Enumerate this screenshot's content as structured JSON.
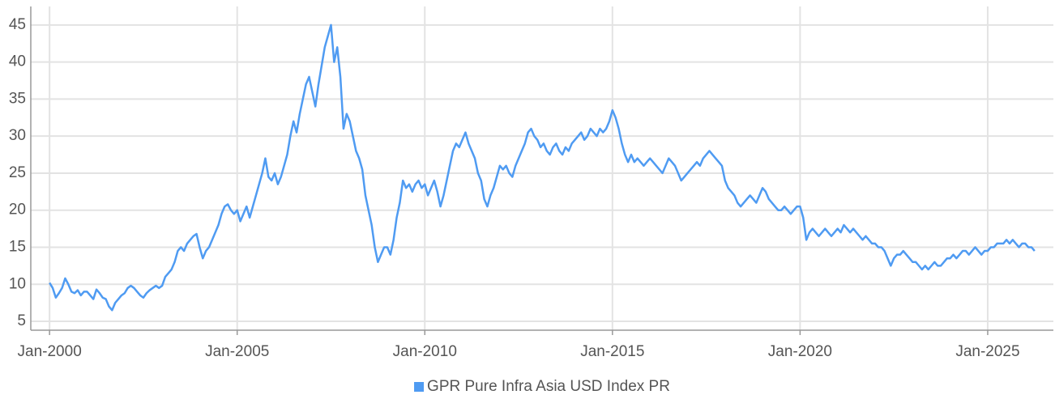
{
  "chart_data": {
    "type": "line",
    "x": [
      "2000-01",
      "2000-02",
      "2000-03",
      "2000-04",
      "2000-05",
      "2000-06",
      "2000-07",
      "2000-08",
      "2000-09",
      "2000-10",
      "2000-11",
      "2000-12",
      "2001-01",
      "2001-02",
      "2001-03",
      "2001-04",
      "2001-05",
      "2001-06",
      "2001-07",
      "2001-08",
      "2001-09",
      "2001-10",
      "2001-11",
      "2001-12",
      "2002-01",
      "2002-02",
      "2002-03",
      "2002-04",
      "2002-05",
      "2002-06",
      "2002-07",
      "2002-08",
      "2002-09",
      "2002-10",
      "2002-11",
      "2002-12",
      "2003-01",
      "2003-02",
      "2003-03",
      "2003-04",
      "2003-05",
      "2003-06",
      "2003-07",
      "2003-08",
      "2003-09",
      "2003-10",
      "2003-11",
      "2003-12",
      "2004-01",
      "2004-02",
      "2004-03",
      "2004-04",
      "2004-05",
      "2004-06",
      "2004-07",
      "2004-08",
      "2004-09",
      "2004-10",
      "2004-11",
      "2004-12",
      "2005-01",
      "2005-02",
      "2005-03",
      "2005-04",
      "2005-05",
      "2005-06",
      "2005-07",
      "2005-08",
      "2005-09",
      "2005-10",
      "2005-11",
      "2005-12",
      "2006-01",
      "2006-02",
      "2006-03",
      "2006-04",
      "2006-05",
      "2006-06",
      "2006-07",
      "2006-08",
      "2006-09",
      "2006-10",
      "2006-11",
      "2006-12",
      "2007-01",
      "2007-02",
      "2007-03",
      "2007-04",
      "2007-05",
      "2007-06",
      "2007-07",
      "2007-08",
      "2007-09",
      "2007-10",
      "2007-11",
      "2007-12",
      "2008-01",
      "2008-02",
      "2008-03",
      "2008-04",
      "2008-05",
      "2008-06",
      "2008-07",
      "2008-08",
      "2008-09",
      "2008-10",
      "2008-11",
      "2008-12",
      "2009-01",
      "2009-02",
      "2009-03",
      "2009-04",
      "2009-05",
      "2009-06",
      "2009-07",
      "2009-08",
      "2009-09",
      "2009-10",
      "2009-11",
      "2009-12",
      "2010-01",
      "2010-02",
      "2010-03",
      "2010-04",
      "2010-05",
      "2010-06",
      "2010-07",
      "2010-08",
      "2010-09",
      "2010-10",
      "2010-11",
      "2010-12",
      "2011-01",
      "2011-02",
      "2011-03",
      "2011-04",
      "2011-05",
      "2011-06",
      "2011-07",
      "2011-08",
      "2011-09",
      "2011-10",
      "2011-11",
      "2011-12",
      "2012-01",
      "2012-02",
      "2012-03",
      "2012-04",
      "2012-05",
      "2012-06",
      "2012-07",
      "2012-08",
      "2012-09",
      "2012-10",
      "2012-11",
      "2012-12",
      "2013-01",
      "2013-02",
      "2013-03",
      "2013-04",
      "2013-05",
      "2013-06",
      "2013-07",
      "2013-08",
      "2013-09",
      "2013-10",
      "2013-11",
      "2013-12",
      "2014-01",
      "2014-02",
      "2014-03",
      "2014-04",
      "2014-05",
      "2014-06",
      "2014-07",
      "2014-08",
      "2014-09",
      "2014-10",
      "2014-11",
      "2014-12",
      "2015-01",
      "2015-02",
      "2015-03",
      "2015-04",
      "2015-05",
      "2015-06",
      "2015-07",
      "2015-08",
      "2015-09",
      "2015-10",
      "2015-11",
      "2015-12",
      "2016-01",
      "2016-02",
      "2016-03",
      "2016-04",
      "2016-05",
      "2016-06",
      "2016-07",
      "2016-08",
      "2016-09",
      "2016-10",
      "2016-11",
      "2016-12",
      "2017-01",
      "2017-02",
      "2017-03",
      "2017-04",
      "2017-05",
      "2017-06",
      "2017-07",
      "2017-08",
      "2017-09",
      "2017-10",
      "2017-11",
      "2017-12",
      "2018-01",
      "2018-02",
      "2018-03",
      "2018-04",
      "2018-05",
      "2018-06",
      "2018-07",
      "2018-08",
      "2018-09",
      "2018-10",
      "2018-11",
      "2018-12",
      "2019-01",
      "2019-02",
      "2019-03",
      "2019-04",
      "2019-05",
      "2019-06",
      "2019-07",
      "2019-08",
      "2019-09",
      "2019-10",
      "2019-11",
      "2019-12",
      "2020-01",
      "2020-02",
      "2020-03",
      "2020-04",
      "2020-05",
      "2020-06",
      "2020-07",
      "2020-08",
      "2020-09",
      "2020-10",
      "2020-11",
      "2020-12",
      "2021-01",
      "2021-02",
      "2021-03",
      "2021-04",
      "2021-05",
      "2021-06",
      "2021-07",
      "2021-08",
      "2021-09",
      "2021-10",
      "2021-11",
      "2021-12",
      "2022-01",
      "2022-02",
      "2022-03",
      "2022-04",
      "2022-05",
      "2022-06",
      "2022-07",
      "2022-08",
      "2022-09",
      "2022-10",
      "2022-11",
      "2022-12",
      "2023-01",
      "2023-02",
      "2023-03",
      "2023-04",
      "2023-05",
      "2023-06",
      "2023-07",
      "2023-08",
      "2023-09",
      "2023-10",
      "2023-11",
      "2023-12",
      "2024-01",
      "2024-02",
      "2024-03",
      "2024-04",
      "2024-05",
      "2024-06",
      "2024-07",
      "2024-08",
      "2024-09",
      "2024-10",
      "2024-11",
      "2024-12",
      "2025-01",
      "2025-02",
      "2025-03",
      "2025-04",
      "2025-05",
      "2025-06",
      "2025-07",
      "2025-08",
      "2025-09",
      "2025-10",
      "2025-11",
      "2025-12",
      "2026-01",
      "2026-02",
      "2026-03",
      "2026-04"
    ],
    "series": [
      {
        "name": "GPR Pure Infra Asia USD Index PR",
        "color": "#4f9bf2",
        "values": [
          10.2,
          9.5,
          8.2,
          8.8,
          9.5,
          10.8,
          10.0,
          9.0,
          8.8,
          9.2,
          8.5,
          9.0,
          9.0,
          8.5,
          8.0,
          9.3,
          8.8,
          8.2,
          8.0,
          7.0,
          6.5,
          7.5,
          8.0,
          8.5,
          8.8,
          9.5,
          9.8,
          9.5,
          9.0,
          8.5,
          8.2,
          8.8,
          9.2,
          9.5,
          9.8,
          9.5,
          9.8,
          11.0,
          11.5,
          12.0,
          13.0,
          14.5,
          15.0,
          14.5,
          15.5,
          16.0,
          16.5,
          16.8,
          15.0,
          13.5,
          14.5,
          15.0,
          16.0,
          17.0,
          18.0,
          19.5,
          20.5,
          20.8,
          20.0,
          19.5,
          20.0,
          18.5,
          19.5,
          20.5,
          19.0,
          20.5,
          22.0,
          23.5,
          25.0,
          27.0,
          24.5,
          24.0,
          25.0,
          23.5,
          24.5,
          26.0,
          27.5,
          30.0,
          32.0,
          30.5,
          33.0,
          35.0,
          37.0,
          38.0,
          36.0,
          34.0,
          37.0,
          39.5,
          42.0,
          43.5,
          45.0,
          40.0,
          42.0,
          38.0,
          31.0,
          33.0,
          32.0,
          30.0,
          28.0,
          27.0,
          25.5,
          22.0,
          20.0,
          18.0,
          15.0,
          13.0,
          14.0,
          15.0,
          15.0,
          14.0,
          16.0,
          19.0,
          21.0,
          24.0,
          23.0,
          23.5,
          22.5,
          23.5,
          24.0,
          23.0,
          23.5,
          22.0,
          23.0,
          24.0,
          22.5,
          20.5,
          22.0,
          24.0,
          26.0,
          28.0,
          29.0,
          28.5,
          29.5,
          30.5,
          29.0,
          28.0,
          27.0,
          25.0,
          24.0,
          21.5,
          20.5,
          22.0,
          23.0,
          24.5,
          26.0,
          25.5,
          26.0,
          25.0,
          24.5,
          26.0,
          27.0,
          28.0,
          29.0,
          30.5,
          31.0,
          30.0,
          29.5,
          28.5,
          29.0,
          28.0,
          27.5,
          28.5,
          29.0,
          28.0,
          27.5,
          28.5,
          28.0,
          29.0,
          29.5,
          30.0,
          30.5,
          29.5,
          30.0,
          31.0,
          30.5,
          30.0,
          31.0,
          30.5,
          31.0,
          32.0,
          33.5,
          32.5,
          31.0,
          29.0,
          27.5,
          26.5,
          27.5,
          26.5,
          27.0,
          26.5,
          26.0,
          26.5,
          27.0,
          26.5,
          26.0,
          25.5,
          25.0,
          26.0,
          27.0,
          26.5,
          26.0,
          25.0,
          24.0,
          24.5,
          25.0,
          25.5,
          26.0,
          26.5,
          26.0,
          27.0,
          27.5,
          28.0,
          27.5,
          27.0,
          26.5,
          26.0,
          24.0,
          23.0,
          22.5,
          22.0,
          21.0,
          20.5,
          21.0,
          21.5,
          22.0,
          21.5,
          21.0,
          22.0,
          23.0,
          22.5,
          21.5,
          21.0,
          20.5,
          20.0,
          20.0,
          20.5,
          20.0,
          19.5,
          20.0,
          20.5,
          20.5,
          19.0,
          16.0,
          17.0,
          17.5,
          17.0,
          16.5,
          17.0,
          17.5,
          17.0,
          16.5,
          17.0,
          17.5,
          17.0,
          18.0,
          17.5,
          17.0,
          17.5,
          17.0,
          16.5,
          16.0,
          16.5,
          16.0,
          15.5,
          15.5,
          15.0,
          15.0,
          14.5,
          13.5,
          12.5,
          13.5,
          14.0,
          14.0,
          14.5,
          14.0,
          13.5,
          13.0,
          13.0,
          12.5,
          12.0,
          12.5,
          12.0,
          12.5,
          13.0,
          12.5,
          12.5,
          13.0,
          13.5,
          13.5,
          14.0,
          13.5,
          14.0,
          14.5,
          14.5,
          14.0,
          14.5,
          15.0,
          14.5,
          14.0,
          14.5,
          14.5,
          15.0,
          15.0,
          15.5,
          15.5,
          15.5,
          16.0,
          15.5,
          16.0,
          15.5,
          15.0,
          15.5,
          15.5,
          15.0,
          15.0,
          14.5
        ]
      }
    ],
    "xlim": [
      "1999-07",
      "2026-10"
    ],
    "xticks": [
      {
        "value": "2000-01",
        "label": "Jan-2000"
      },
      {
        "value": "2005-01",
        "label": "Jan-2005"
      },
      {
        "value": "2010-01",
        "label": "Jan-2010"
      },
      {
        "value": "2015-01",
        "label": "Jan-2015"
      },
      {
        "value": "2020-01",
        "label": "Jan-2020"
      },
      {
        "value": "2025-01",
        "label": "Jan-2025"
      }
    ],
    "ylim": [
      3.8,
      47.5
    ],
    "yticks": [
      5,
      10,
      15,
      20,
      25,
      30,
      35,
      40,
      45
    ],
    "grid": true,
    "legend": "bottom"
  }
}
